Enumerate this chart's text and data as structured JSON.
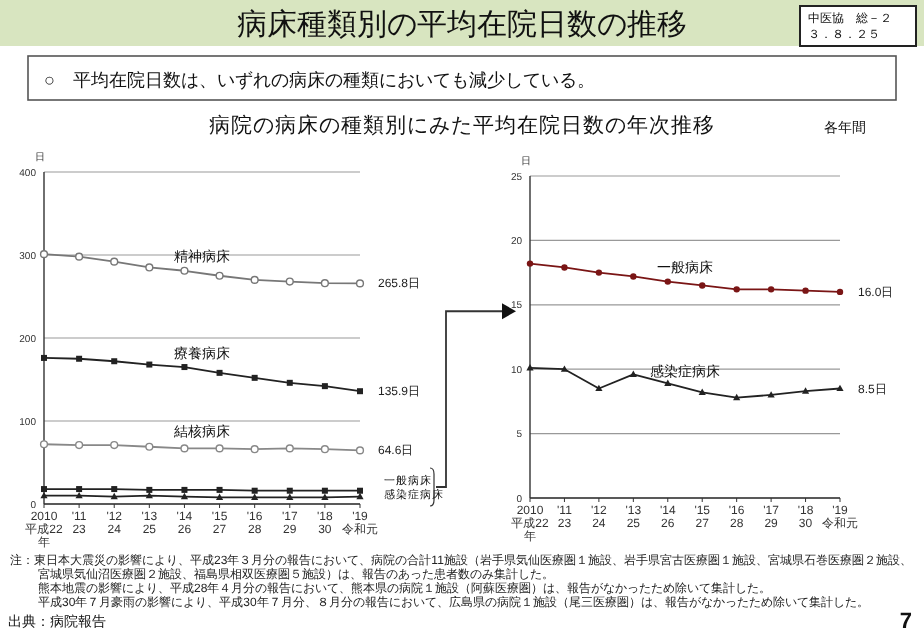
{
  "chart_data": [
    {
      "type": "other",
      "title": "病床種類別の平均在院日数の推移",
      "subtitle": "○　平均在院日数は、いずれの病床の種類においても減少している。",
      "annotations": [
        "中医協　総－２",
        "３．８．２５",
        "出典：病院報告",
        "7"
      ]
    },
    {
      "type": "line",
      "title": "病院の病床の種類別にみた平均在院日数の年次推移",
      "ylabel": "日",
      "categories": [
        "2010\n平成22\n年",
        "'11\n23",
        "'12\n24",
        "'13\n25",
        "'14\n26",
        "'15\n27",
        "'16\n28",
        "'17\n29",
        "'18\n30",
        "'19\n令和元"
      ],
      "ylim": [
        0,
        400
      ],
      "yticks": [
        0,
        100,
        200,
        300,
        400
      ],
      "grid": "y",
      "series": [
        {
          "name": "精神病床",
          "color": "#777777",
          "marker": "circle",
          "values": [
            301,
            298,
            292,
            285,
            281,
            275,
            270,
            268,
            266,
            265.8
          ],
          "value_labels": [
            null,
            null,
            null,
            null,
            null,
            null,
            null,
            null,
            null,
            "265.8日"
          ]
        },
        {
          "name": "療養病床",
          "color": "#222222",
          "marker": "square",
          "values": [
            176,
            175,
            172,
            168,
            165,
            158,
            152,
            146,
            142,
            135.9
          ],
          "value_labels": [
            null,
            null,
            null,
            null,
            null,
            null,
            null,
            null,
            null,
            "135.9日"
          ]
        },
        {
          "name": "結核病床",
          "color": "#888888",
          "marker": "circle",
          "values": [
            72,
            71,
            71,
            69,
            67,
            67,
            66,
            67,
            66,
            64.6
          ],
          "value_labels": [
            null,
            null,
            null,
            null,
            null,
            null,
            null,
            null,
            null,
            "64.6日"
          ]
        },
        {
          "name": "一般病床",
          "color": "#222222",
          "marker": "square",
          "values": [
            18,
            18,
            18,
            17,
            17,
            17,
            16,
            16,
            16,
            16
          ]
        },
        {
          "name": "感染症病床",
          "color": "#222222",
          "marker": "triangle",
          "values": [
            10,
            10,
            9,
            10,
            9,
            8,
            8,
            8,
            8,
            9
          ]
        }
      ],
      "annotations": [
        "注：東日本大震災の影響により、平成23年３月分の報告において、病院の合計11施設（岩手県気仙医療圏１施設、岩手県宮古医療圏１施設、宮城県石巻医療圏２施設、",
        "宮城県気仙沼医療圏２施設、福島県相双医療圏５施設）は、報告のあった患者数のみ集計した。",
        "熊本地震の影響により、平成28年４月分の報告において、熊本県の病院１施設（阿蘇医療圏）は、報告がなかったため除いて集計した。",
        "平成30年７月豪雨の影響により、平成30年７月分、８月分の報告において、広島県の病院１施設（尾三医療圏）は、報告がなかったため除いて集計した。"
      ]
    },
    {
      "type": "line",
      "ylabel": "日",
      "categories": [
        "2010\n平成22\n年",
        "'11\n23",
        "'12\n24",
        "'13\n25",
        "'14\n26",
        "'15\n27",
        "'16\n28",
        "'17\n29",
        "'18\n30",
        "'19\n令和元"
      ],
      "ylim": [
        0,
        25
      ],
      "yticks": [
        0,
        5,
        10,
        15,
        20,
        25
      ],
      "grid": "y",
      "series": [
        {
          "name": "一般病床",
          "color": "#7a1515",
          "marker": "circle_filled",
          "values": [
            18.2,
            17.9,
            17.5,
            17.2,
            16.8,
            16.5,
            16.2,
            16.2,
            16.1,
            16.0
          ],
          "value_labels": [
            null,
            null,
            null,
            null,
            null,
            null,
            null,
            null,
            null,
            "16.0日"
          ]
        },
        {
          "name": "感染症病床",
          "color": "#222222",
          "marker": "triangle",
          "values": [
            10.1,
            10.0,
            8.5,
            9.6,
            8.9,
            8.2,
            7.8,
            8.0,
            8.3,
            8.5
          ],
          "value_labels": [
            null,
            null,
            null,
            null,
            null,
            null,
            null,
            null,
            null,
            "8.5日"
          ]
        }
      ],
      "annotations": [
        "各年間"
      ]
    }
  ]
}
